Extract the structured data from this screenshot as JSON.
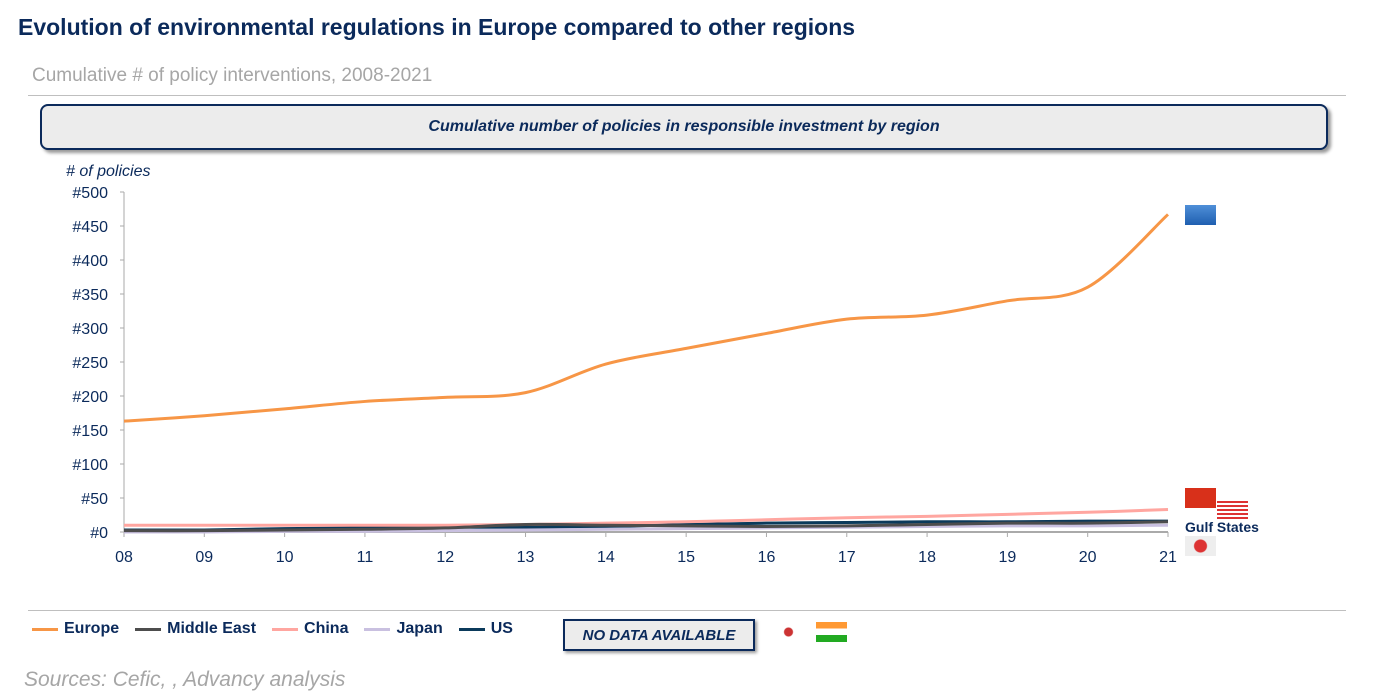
{
  "header": {
    "title": "Evolution of environmental regulations in Europe compared to other regions",
    "subtitle": "Cumulative # of policy interventions, 2008-2021"
  },
  "banner": "Cumulative number of policies in responsible investment by region",
  "chart_data": {
    "type": "line",
    "title": "Cumulative number of policies in responsible investment by region",
    "ylabel": "# of policies",
    "xlabel": "",
    "x": [
      "08",
      "09",
      "10",
      "11",
      "12",
      "13",
      "14",
      "15",
      "16",
      "17",
      "18",
      "19",
      "20",
      "21"
    ],
    "yticks": [
      "#0",
      "#50",
      "#100",
      "#150",
      "#200",
      "#250",
      "#300",
      "#350",
      "#400",
      "#450",
      "#500"
    ],
    "ylim": [
      0,
      500
    ],
    "series": [
      {
        "name": "Europe",
        "color": "#f79646",
        "values": [
          163,
          171,
          181,
          192,
          198,
          205,
          247,
          270,
          292,
          313,
          319,
          340,
          360,
          467
        ]
      },
      {
        "name": "Middle East",
        "color": "#4d4d4d",
        "values": [
          2,
          2,
          3,
          4,
          6,
          11,
          10,
          9,
          8,
          9,
          11,
          13,
          13,
          15
        ]
      },
      {
        "name": "China",
        "color": "#ffa6a0",
        "values": [
          10,
          10,
          10,
          10,
          10,
          11,
          13,
          15,
          18,
          21,
          23,
          26,
          29,
          33
        ]
      },
      {
        "name": "Japan",
        "color": "#c9c0e0",
        "values": [
          0,
          0,
          1,
          1,
          2,
          3,
          4,
          5,
          6,
          7,
          8,
          9,
          9,
          10
        ]
      },
      {
        "name": "US",
        "color": "#0b3a5b",
        "values": [
          3,
          3,
          5,
          6,
          7,
          7,
          8,
          11,
          13,
          14,
          15,
          15,
          16,
          16
        ]
      }
    ],
    "annotations": [
      "Gulf States"
    ],
    "legend_position": "bottom"
  },
  "legend": {
    "no_data": "NO DATA AVAILABLE"
  },
  "source": "Sources: Cefic, , Advancy analysis"
}
